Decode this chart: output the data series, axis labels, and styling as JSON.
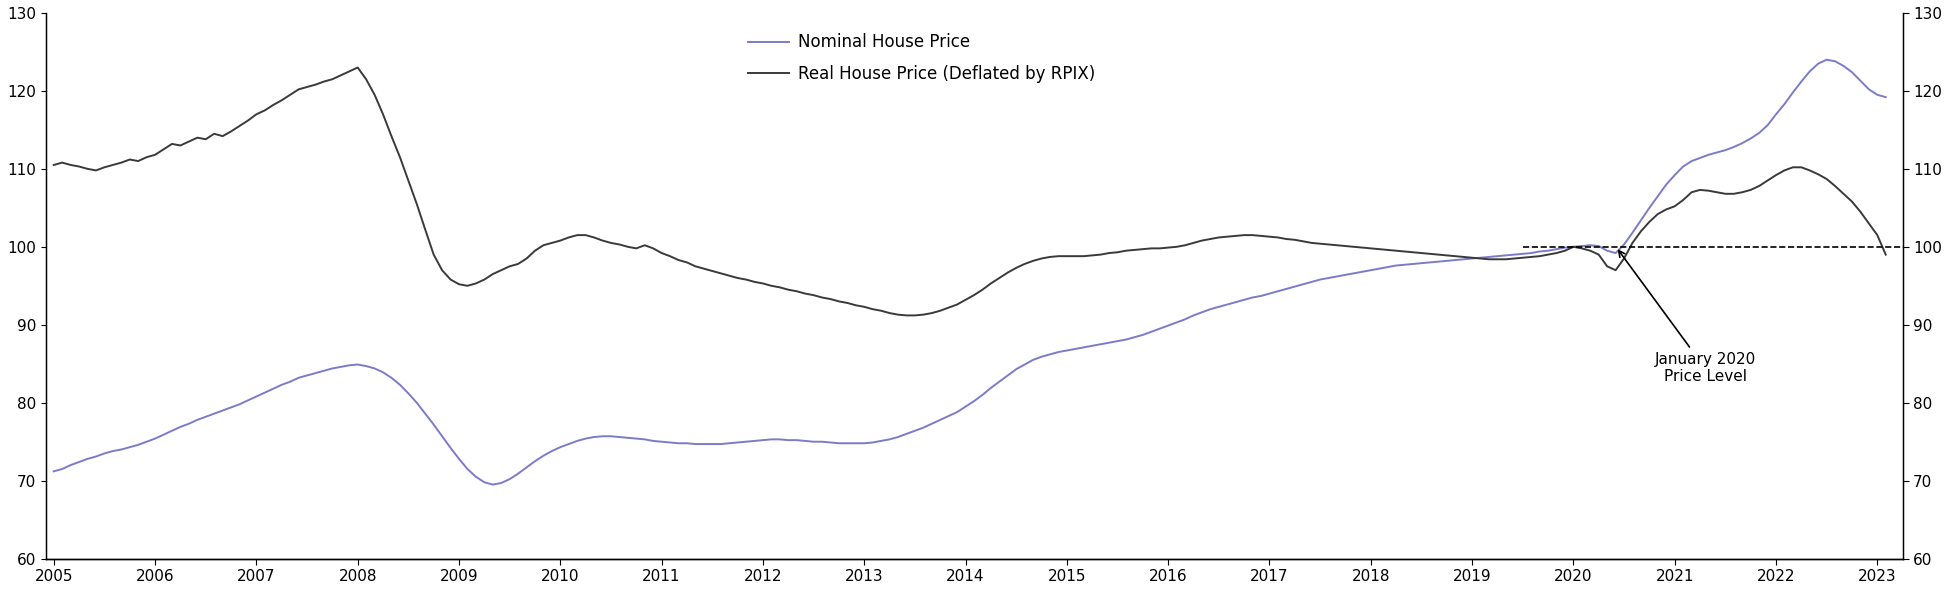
{
  "nominal_label": "Nominal House Price",
  "real_label": "Real House Price (Deflated by RPIX)",
  "nominal_color": "#7b7bca",
  "real_color": "#3a3a3a",
  "annotation_text": "January 2020\nPrice Level",
  "ylim": [
    60,
    130
  ],
  "yticks": [
    60,
    70,
    80,
    90,
    100,
    110,
    120,
    130
  ],
  "xmin": 2004.92,
  "xmax": 2023.25,
  "dashed_y": 100,
  "dashed_xmin": 2019.5,
  "dashed_xmax": 2023.25,
  "background_color": "#ffffff",
  "nominal_data": [
    [
      2005.0,
      71.2
    ],
    [
      2005.083,
      71.5
    ],
    [
      2005.167,
      72.0
    ],
    [
      2005.25,
      72.4
    ],
    [
      2005.333,
      72.8
    ],
    [
      2005.417,
      73.1
    ],
    [
      2005.5,
      73.5
    ],
    [
      2005.583,
      73.8
    ],
    [
      2005.667,
      74.0
    ],
    [
      2005.75,
      74.3
    ],
    [
      2005.833,
      74.6
    ],
    [
      2005.917,
      75.0
    ],
    [
      2006.0,
      75.4
    ],
    [
      2006.083,
      75.9
    ],
    [
      2006.167,
      76.4
    ],
    [
      2006.25,
      76.9
    ],
    [
      2006.333,
      77.3
    ],
    [
      2006.417,
      77.8
    ],
    [
      2006.5,
      78.2
    ],
    [
      2006.583,
      78.6
    ],
    [
      2006.667,
      79.0
    ],
    [
      2006.75,
      79.4
    ],
    [
      2006.833,
      79.8
    ],
    [
      2006.917,
      80.3
    ],
    [
      2007.0,
      80.8
    ],
    [
      2007.083,
      81.3
    ],
    [
      2007.167,
      81.8
    ],
    [
      2007.25,
      82.3
    ],
    [
      2007.333,
      82.7
    ],
    [
      2007.417,
      83.2
    ],
    [
      2007.5,
      83.5
    ],
    [
      2007.583,
      83.8
    ],
    [
      2007.667,
      84.1
    ],
    [
      2007.75,
      84.4
    ],
    [
      2007.833,
      84.6
    ],
    [
      2007.917,
      84.8
    ],
    [
      2008.0,
      84.9
    ],
    [
      2008.083,
      84.7
    ],
    [
      2008.167,
      84.4
    ],
    [
      2008.25,
      83.9
    ],
    [
      2008.333,
      83.2
    ],
    [
      2008.417,
      82.3
    ],
    [
      2008.5,
      81.2
    ],
    [
      2008.583,
      80.0
    ],
    [
      2008.667,
      78.6
    ],
    [
      2008.75,
      77.2
    ],
    [
      2008.833,
      75.7
    ],
    [
      2008.917,
      74.2
    ],
    [
      2009.0,
      72.8
    ],
    [
      2009.083,
      71.5
    ],
    [
      2009.167,
      70.5
    ],
    [
      2009.25,
      69.8
    ],
    [
      2009.333,
      69.5
    ],
    [
      2009.417,
      69.7
    ],
    [
      2009.5,
      70.2
    ],
    [
      2009.583,
      70.9
    ],
    [
      2009.667,
      71.7
    ],
    [
      2009.75,
      72.5
    ],
    [
      2009.833,
      73.2
    ],
    [
      2009.917,
      73.8
    ],
    [
      2010.0,
      74.3
    ],
    [
      2010.083,
      74.7
    ],
    [
      2010.167,
      75.1
    ],
    [
      2010.25,
      75.4
    ],
    [
      2010.333,
      75.6
    ],
    [
      2010.417,
      75.7
    ],
    [
      2010.5,
      75.7
    ],
    [
      2010.583,
      75.6
    ],
    [
      2010.667,
      75.5
    ],
    [
      2010.75,
      75.4
    ],
    [
      2010.833,
      75.3
    ],
    [
      2010.917,
      75.1
    ],
    [
      2011.0,
      75.0
    ],
    [
      2011.083,
      74.9
    ],
    [
      2011.167,
      74.8
    ],
    [
      2011.25,
      74.8
    ],
    [
      2011.333,
      74.7
    ],
    [
      2011.417,
      74.7
    ],
    [
      2011.5,
      74.7
    ],
    [
      2011.583,
      74.7
    ],
    [
      2011.667,
      74.8
    ],
    [
      2011.75,
      74.9
    ],
    [
      2011.833,
      75.0
    ],
    [
      2011.917,
      75.1
    ],
    [
      2012.0,
      75.2
    ],
    [
      2012.083,
      75.3
    ],
    [
      2012.167,
      75.3
    ],
    [
      2012.25,
      75.2
    ],
    [
      2012.333,
      75.2
    ],
    [
      2012.417,
      75.1
    ],
    [
      2012.5,
      75.0
    ],
    [
      2012.583,
      75.0
    ],
    [
      2012.667,
      74.9
    ],
    [
      2012.75,
      74.8
    ],
    [
      2012.833,
      74.8
    ],
    [
      2012.917,
      74.8
    ],
    [
      2013.0,
      74.8
    ],
    [
      2013.083,
      74.9
    ],
    [
      2013.167,
      75.1
    ],
    [
      2013.25,
      75.3
    ],
    [
      2013.333,
      75.6
    ],
    [
      2013.417,
      76.0
    ],
    [
      2013.5,
      76.4
    ],
    [
      2013.583,
      76.8
    ],
    [
      2013.667,
      77.3
    ],
    [
      2013.75,
      77.8
    ],
    [
      2013.833,
      78.3
    ],
    [
      2013.917,
      78.8
    ],
    [
      2014.0,
      79.5
    ],
    [
      2014.083,
      80.2
    ],
    [
      2014.167,
      81.0
    ],
    [
      2014.25,
      81.9
    ],
    [
      2014.333,
      82.7
    ],
    [
      2014.417,
      83.5
    ],
    [
      2014.5,
      84.3
    ],
    [
      2014.583,
      84.9
    ],
    [
      2014.667,
      85.5
    ],
    [
      2014.75,
      85.9
    ],
    [
      2014.833,
      86.2
    ],
    [
      2014.917,
      86.5
    ],
    [
      2015.0,
      86.7
    ],
    [
      2015.083,
      86.9
    ],
    [
      2015.167,
      87.1
    ],
    [
      2015.25,
      87.3
    ],
    [
      2015.333,
      87.5
    ],
    [
      2015.417,
      87.7
    ],
    [
      2015.5,
      87.9
    ],
    [
      2015.583,
      88.1
    ],
    [
      2015.667,
      88.4
    ],
    [
      2015.75,
      88.7
    ],
    [
      2015.833,
      89.1
    ],
    [
      2015.917,
      89.5
    ],
    [
      2016.0,
      89.9
    ],
    [
      2016.083,
      90.3
    ],
    [
      2016.167,
      90.7
    ],
    [
      2016.25,
      91.2
    ],
    [
      2016.333,
      91.6
    ],
    [
      2016.417,
      92.0
    ],
    [
      2016.5,
      92.3
    ],
    [
      2016.583,
      92.6
    ],
    [
      2016.667,
      92.9
    ],
    [
      2016.75,
      93.2
    ],
    [
      2016.833,
      93.5
    ],
    [
      2016.917,
      93.7
    ],
    [
      2017.0,
      94.0
    ],
    [
      2017.083,
      94.3
    ],
    [
      2017.167,
      94.6
    ],
    [
      2017.25,
      94.9
    ],
    [
      2017.333,
      95.2
    ],
    [
      2017.417,
      95.5
    ],
    [
      2017.5,
      95.8
    ],
    [
      2017.583,
      96.0
    ],
    [
      2017.667,
      96.2
    ],
    [
      2017.75,
      96.4
    ],
    [
      2017.833,
      96.6
    ],
    [
      2017.917,
      96.8
    ],
    [
      2018.0,
      97.0
    ],
    [
      2018.083,
      97.2
    ],
    [
      2018.167,
      97.4
    ],
    [
      2018.25,
      97.6
    ],
    [
      2018.333,
      97.7
    ],
    [
      2018.417,
      97.8
    ],
    [
      2018.5,
      97.9
    ],
    [
      2018.583,
      98.0
    ],
    [
      2018.667,
      98.1
    ],
    [
      2018.75,
      98.2
    ],
    [
      2018.833,
      98.3
    ],
    [
      2018.917,
      98.4
    ],
    [
      2019.0,
      98.5
    ],
    [
      2019.083,
      98.6
    ],
    [
      2019.167,
      98.7
    ],
    [
      2019.25,
      98.8
    ],
    [
      2019.333,
      98.9
    ],
    [
      2019.417,
      99.0
    ],
    [
      2019.5,
      99.1
    ],
    [
      2019.583,
      99.2
    ],
    [
      2019.667,
      99.4
    ],
    [
      2019.75,
      99.5
    ],
    [
      2019.833,
      99.7
    ],
    [
      2019.917,
      99.9
    ],
    [
      2020.0,
      100.0
    ],
    [
      2020.083,
      100.1
    ],
    [
      2020.167,
      100.2
    ],
    [
      2020.25,
      100.1
    ],
    [
      2020.333,
      99.5
    ],
    [
      2020.417,
      99.2
    ],
    [
      2020.5,
      100.3
    ],
    [
      2020.583,
      101.8
    ],
    [
      2020.667,
      103.4
    ],
    [
      2020.75,
      105.0
    ],
    [
      2020.833,
      106.5
    ],
    [
      2020.917,
      108.0
    ],
    [
      2021.0,
      109.2
    ],
    [
      2021.083,
      110.3
    ],
    [
      2021.167,
      111.0
    ],
    [
      2021.25,
      111.4
    ],
    [
      2021.333,
      111.8
    ],
    [
      2021.417,
      112.1
    ],
    [
      2021.5,
      112.4
    ],
    [
      2021.583,
      112.8
    ],
    [
      2021.667,
      113.3
    ],
    [
      2021.75,
      113.9
    ],
    [
      2021.833,
      114.6
    ],
    [
      2021.917,
      115.6
    ],
    [
      2022.0,
      117.0
    ],
    [
      2022.083,
      118.3
    ],
    [
      2022.167,
      119.8
    ],
    [
      2022.25,
      121.2
    ],
    [
      2022.333,
      122.5
    ],
    [
      2022.417,
      123.5
    ],
    [
      2022.5,
      124.0
    ],
    [
      2022.583,
      123.8
    ],
    [
      2022.667,
      123.2
    ],
    [
      2022.75,
      122.4
    ],
    [
      2022.833,
      121.3
    ],
    [
      2022.917,
      120.2
    ],
    [
      2023.0,
      119.5
    ],
    [
      2023.083,
      119.2
    ]
  ],
  "real_data": [
    [
      2005.0,
      110.5
    ],
    [
      2005.083,
      110.8
    ],
    [
      2005.167,
      110.5
    ],
    [
      2005.25,
      110.3
    ],
    [
      2005.333,
      110.0
    ],
    [
      2005.417,
      109.8
    ],
    [
      2005.5,
      110.2
    ],
    [
      2005.583,
      110.5
    ],
    [
      2005.667,
      110.8
    ],
    [
      2005.75,
      111.2
    ],
    [
      2005.833,
      111.0
    ],
    [
      2005.917,
      111.5
    ],
    [
      2006.0,
      111.8
    ],
    [
      2006.083,
      112.5
    ],
    [
      2006.167,
      113.2
    ],
    [
      2006.25,
      113.0
    ],
    [
      2006.333,
      113.5
    ],
    [
      2006.417,
      114.0
    ],
    [
      2006.5,
      113.8
    ],
    [
      2006.583,
      114.5
    ],
    [
      2006.667,
      114.2
    ],
    [
      2006.75,
      114.8
    ],
    [
      2006.833,
      115.5
    ],
    [
      2006.917,
      116.2
    ],
    [
      2007.0,
      117.0
    ],
    [
      2007.083,
      117.5
    ],
    [
      2007.167,
      118.2
    ],
    [
      2007.25,
      118.8
    ],
    [
      2007.333,
      119.5
    ],
    [
      2007.417,
      120.2
    ],
    [
      2007.5,
      120.5
    ],
    [
      2007.583,
      120.8
    ],
    [
      2007.667,
      121.2
    ],
    [
      2007.75,
      121.5
    ],
    [
      2007.833,
      122.0
    ],
    [
      2007.917,
      122.5
    ],
    [
      2008.0,
      123.0
    ],
    [
      2008.083,
      121.5
    ],
    [
      2008.167,
      119.5
    ],
    [
      2008.25,
      117.0
    ],
    [
      2008.333,
      114.2
    ],
    [
      2008.417,
      111.5
    ],
    [
      2008.5,
      108.5
    ],
    [
      2008.583,
      105.5
    ],
    [
      2008.667,
      102.2
    ],
    [
      2008.75,
      99.0
    ],
    [
      2008.833,
      97.0
    ],
    [
      2008.917,
      95.8
    ],
    [
      2009.0,
      95.2
    ],
    [
      2009.083,
      95.0
    ],
    [
      2009.167,
      95.3
    ],
    [
      2009.25,
      95.8
    ],
    [
      2009.333,
      96.5
    ],
    [
      2009.417,
      97.0
    ],
    [
      2009.5,
      97.5
    ],
    [
      2009.583,
      97.8
    ],
    [
      2009.667,
      98.5
    ],
    [
      2009.75,
      99.5
    ],
    [
      2009.833,
      100.2
    ],
    [
      2009.917,
      100.5
    ],
    [
      2010.0,
      100.8
    ],
    [
      2010.083,
      101.2
    ],
    [
      2010.167,
      101.5
    ],
    [
      2010.25,
      101.5
    ],
    [
      2010.333,
      101.2
    ],
    [
      2010.417,
      100.8
    ],
    [
      2010.5,
      100.5
    ],
    [
      2010.583,
      100.3
    ],
    [
      2010.667,
      100.0
    ],
    [
      2010.75,
      99.8
    ],
    [
      2010.833,
      100.2
    ],
    [
      2010.917,
      99.8
    ],
    [
      2011.0,
      99.2
    ],
    [
      2011.083,
      98.8
    ],
    [
      2011.167,
      98.3
    ],
    [
      2011.25,
      98.0
    ],
    [
      2011.333,
      97.5
    ],
    [
      2011.417,
      97.2
    ],
    [
      2011.5,
      96.9
    ],
    [
      2011.583,
      96.6
    ],
    [
      2011.667,
      96.3
    ],
    [
      2011.75,
      96.0
    ],
    [
      2011.833,
      95.8
    ],
    [
      2011.917,
      95.5
    ],
    [
      2012.0,
      95.3
    ],
    [
      2012.083,
      95.0
    ],
    [
      2012.167,
      94.8
    ],
    [
      2012.25,
      94.5
    ],
    [
      2012.333,
      94.3
    ],
    [
      2012.417,
      94.0
    ],
    [
      2012.5,
      93.8
    ],
    [
      2012.583,
      93.5
    ],
    [
      2012.667,
      93.3
    ],
    [
      2012.75,
      93.0
    ],
    [
      2012.833,
      92.8
    ],
    [
      2012.917,
      92.5
    ],
    [
      2013.0,
      92.3
    ],
    [
      2013.083,
      92.0
    ],
    [
      2013.167,
      91.8
    ],
    [
      2013.25,
      91.5
    ],
    [
      2013.333,
      91.3
    ],
    [
      2013.417,
      91.2
    ],
    [
      2013.5,
      91.2
    ],
    [
      2013.583,
      91.3
    ],
    [
      2013.667,
      91.5
    ],
    [
      2013.75,
      91.8
    ],
    [
      2013.833,
      92.2
    ],
    [
      2013.917,
      92.6
    ],
    [
      2014.0,
      93.2
    ],
    [
      2014.083,
      93.8
    ],
    [
      2014.167,
      94.5
    ],
    [
      2014.25,
      95.3
    ],
    [
      2014.333,
      96.0
    ],
    [
      2014.417,
      96.7
    ],
    [
      2014.5,
      97.3
    ],
    [
      2014.583,
      97.8
    ],
    [
      2014.667,
      98.2
    ],
    [
      2014.75,
      98.5
    ],
    [
      2014.833,
      98.7
    ],
    [
      2014.917,
      98.8
    ],
    [
      2015.0,
      98.8
    ],
    [
      2015.083,
      98.8
    ],
    [
      2015.167,
      98.8
    ],
    [
      2015.25,
      98.9
    ],
    [
      2015.333,
      99.0
    ],
    [
      2015.417,
      99.2
    ],
    [
      2015.5,
      99.3
    ],
    [
      2015.583,
      99.5
    ],
    [
      2015.667,
      99.6
    ],
    [
      2015.75,
      99.7
    ],
    [
      2015.833,
      99.8
    ],
    [
      2015.917,
      99.8
    ],
    [
      2016.0,
      99.9
    ],
    [
      2016.083,
      100.0
    ],
    [
      2016.167,
      100.2
    ],
    [
      2016.25,
      100.5
    ],
    [
      2016.333,
      100.8
    ],
    [
      2016.417,
      101.0
    ],
    [
      2016.5,
      101.2
    ],
    [
      2016.583,
      101.3
    ],
    [
      2016.667,
      101.4
    ],
    [
      2016.75,
      101.5
    ],
    [
      2016.833,
      101.5
    ],
    [
      2016.917,
      101.4
    ],
    [
      2017.0,
      101.3
    ],
    [
      2017.083,
      101.2
    ],
    [
      2017.167,
      101.0
    ],
    [
      2017.25,
      100.9
    ],
    [
      2017.333,
      100.7
    ],
    [
      2017.417,
      100.5
    ],
    [
      2017.5,
      100.4
    ],
    [
      2017.583,
      100.3
    ],
    [
      2017.667,
      100.2
    ],
    [
      2017.75,
      100.1
    ],
    [
      2017.833,
      100.0
    ],
    [
      2017.917,
      99.9
    ],
    [
      2018.0,
      99.8
    ],
    [
      2018.083,
      99.7
    ],
    [
      2018.167,
      99.6
    ],
    [
      2018.25,
      99.5
    ],
    [
      2018.333,
      99.4
    ],
    [
      2018.417,
      99.3
    ],
    [
      2018.5,
      99.2
    ],
    [
      2018.583,
      99.1
    ],
    [
      2018.667,
      99.0
    ],
    [
      2018.75,
      98.9
    ],
    [
      2018.833,
      98.8
    ],
    [
      2018.917,
      98.7
    ],
    [
      2019.0,
      98.6
    ],
    [
      2019.083,
      98.5
    ],
    [
      2019.167,
      98.4
    ],
    [
      2019.25,
      98.4
    ],
    [
      2019.333,
      98.4
    ],
    [
      2019.417,
      98.5
    ],
    [
      2019.5,
      98.6
    ],
    [
      2019.583,
      98.7
    ],
    [
      2019.667,
      98.8
    ],
    [
      2019.75,
      99.0
    ],
    [
      2019.833,
      99.2
    ],
    [
      2019.917,
      99.5
    ],
    [
      2020.0,
      100.0
    ],
    [
      2020.083,
      99.8
    ],
    [
      2020.167,
      99.5
    ],
    [
      2020.25,
      99.0
    ],
    [
      2020.333,
      97.5
    ],
    [
      2020.417,
      97.0
    ],
    [
      2020.5,
      98.5
    ],
    [
      2020.583,
      100.5
    ],
    [
      2020.667,
      102.0
    ],
    [
      2020.75,
      103.2
    ],
    [
      2020.833,
      104.2
    ],
    [
      2020.917,
      104.8
    ],
    [
      2021.0,
      105.2
    ],
    [
      2021.083,
      106.0
    ],
    [
      2021.167,
      107.0
    ],
    [
      2021.25,
      107.3
    ],
    [
      2021.333,
      107.2
    ],
    [
      2021.417,
      107.0
    ],
    [
      2021.5,
      106.8
    ],
    [
      2021.583,
      106.8
    ],
    [
      2021.667,
      107.0
    ],
    [
      2021.75,
      107.3
    ],
    [
      2021.833,
      107.8
    ],
    [
      2021.917,
      108.5
    ],
    [
      2022.0,
      109.2
    ],
    [
      2022.083,
      109.8
    ],
    [
      2022.167,
      110.2
    ],
    [
      2022.25,
      110.2
    ],
    [
      2022.333,
      109.8
    ],
    [
      2022.417,
      109.3
    ],
    [
      2022.5,
      108.7
    ],
    [
      2022.583,
      107.8
    ],
    [
      2022.667,
      106.8
    ],
    [
      2022.75,
      105.8
    ],
    [
      2022.833,
      104.5
    ],
    [
      2022.917,
      103.0
    ],
    [
      2023.0,
      101.5
    ],
    [
      2023.083,
      99.0
    ]
  ]
}
